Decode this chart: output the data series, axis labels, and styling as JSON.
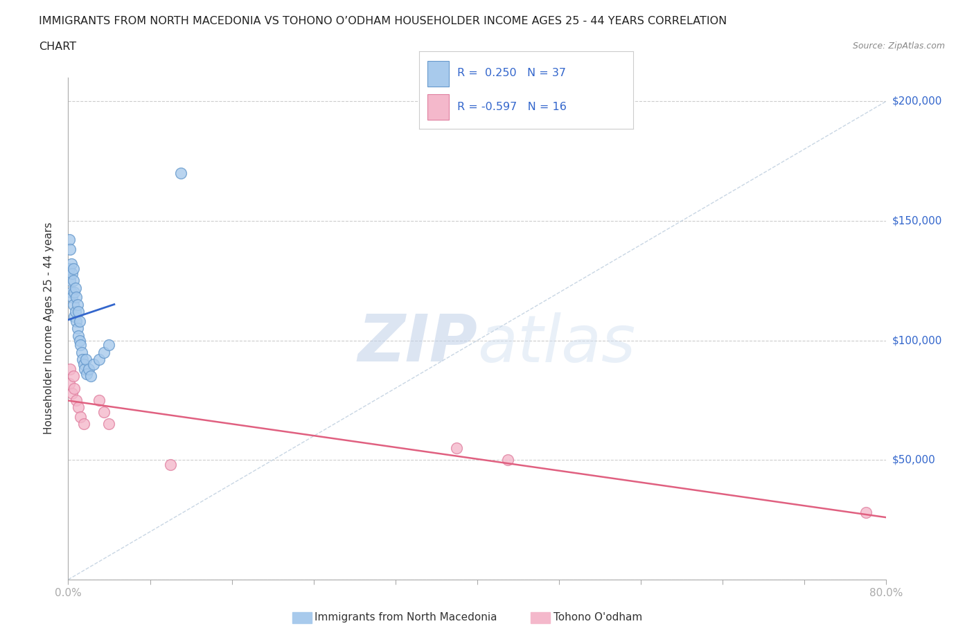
{
  "title_line1": "IMMIGRANTS FROM NORTH MACEDONIA VS TOHONO O’ODHAM HOUSEHOLDER INCOME AGES 25 - 44 YEARS CORRELATION",
  "title_line2": "CHART",
  "source_text": "Source: ZipAtlas.com",
  "ylabel": "Householder Income Ages 25 - 44 years",
  "xlim": [
    0.0,
    0.8
  ],
  "ylim": [
    0,
    210000
  ],
  "yticks": [
    0,
    50000,
    100000,
    150000,
    200000
  ],
  "xticks": [
    0.0,
    0.08,
    0.16,
    0.24,
    0.32,
    0.4,
    0.48,
    0.56,
    0.64,
    0.72,
    0.8
  ],
  "blue_color": "#A8CAEC",
  "blue_edge": "#6699CC",
  "pink_color": "#F4B8CB",
  "pink_edge": "#E080A0",
  "blue_line_color": "#3366CC",
  "pink_line_color": "#E06080",
  "diag_line_color": "#BBCCDD",
  "r_blue": 0.25,
  "n_blue": 37,
  "r_pink": -0.597,
  "n_pink": 16,
  "watermark_zip": "ZIP",
  "watermark_atlas": "atlas",
  "legend_label_blue": "Immigrants from North Macedonia",
  "legend_label_pink": "Tohono O'odham",
  "blue_x": [
    0.001,
    0.001,
    0.002,
    0.002,
    0.003,
    0.003,
    0.004,
    0.004,
    0.005,
    0.005,
    0.005,
    0.006,
    0.006,
    0.007,
    0.007,
    0.008,
    0.008,
    0.009,
    0.009,
    0.01,
    0.01,
    0.011,
    0.011,
    0.012,
    0.013,
    0.014,
    0.015,
    0.016,
    0.017,
    0.018,
    0.02,
    0.022,
    0.025,
    0.03,
    0.035,
    0.04,
    0.11
  ],
  "blue_y": [
    130000,
    142000,
    125000,
    138000,
    120000,
    132000,
    118000,
    128000,
    115000,
    125000,
    130000,
    110000,
    120000,
    112000,
    122000,
    108000,
    118000,
    105000,
    115000,
    102000,
    112000,
    100000,
    108000,
    98000,
    95000,
    92000,
    90000,
    88000,
    92000,
    86000,
    88000,
    85000,
    90000,
    92000,
    95000,
    98000,
    170000
  ],
  "pink_x": [
    0.001,
    0.002,
    0.004,
    0.005,
    0.006,
    0.008,
    0.01,
    0.012,
    0.015,
    0.03,
    0.035,
    0.04,
    0.1,
    0.38,
    0.43,
    0.78
  ],
  "pink_y": [
    82000,
    88000,
    78000,
    85000,
    80000,
    75000,
    72000,
    68000,
    65000,
    75000,
    70000,
    65000,
    48000,
    55000,
    50000,
    28000
  ]
}
